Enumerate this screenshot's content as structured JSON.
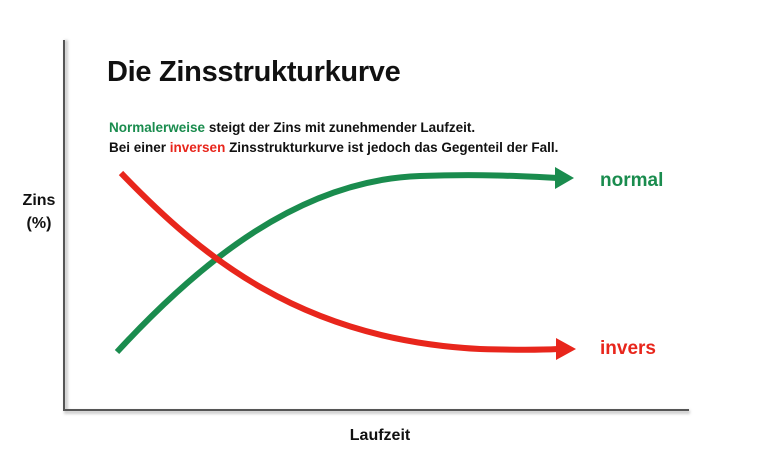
{
  "title": "Die Zinsstrukturkurve",
  "subtitle": {
    "line1_highlight": "Normalerweise",
    "line1_rest": " steigt der Zins mit zunehmender Laufzeit.",
    "line2_start": "Bei einer ",
    "line2_highlight": "inversen",
    "line2_rest": " Zinsstrukturkurve ist jedoch das Gegenteil der Fall."
  },
  "axes": {
    "y_label_line1": "Zins",
    "y_label_line2": "(%)",
    "x_label": "Laufzeit"
  },
  "curves": {
    "normal": {
      "label": "normal",
      "color": "#1a8c4e",
      "trend": "rising"
    },
    "invers": {
      "label": "invers",
      "color": "#e8261c",
      "trend": "falling"
    }
  },
  "colors": {
    "axis": "#555555",
    "text": "#111111"
  }
}
